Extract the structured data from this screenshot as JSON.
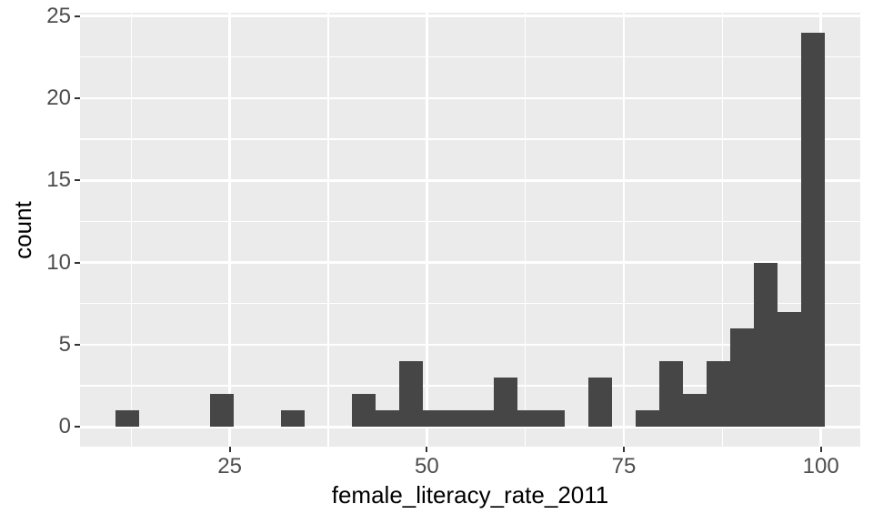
{
  "chart_data": {
    "type": "bar",
    "subtype": "histogram",
    "title": "",
    "xlabel": "female_literacy_rate_2011",
    "ylabel": "count",
    "bin_start": 10.5,
    "bin_width": 3,
    "bin_edges": [
      10.5,
      13.5,
      16.5,
      19.5,
      22.5,
      25.5,
      28.5,
      31.5,
      34.5,
      37.5,
      40.5,
      43.5,
      46.5,
      49.5,
      52.5,
      55.5,
      58.5,
      61.5,
      64.5,
      67.5,
      70.5,
      73.5,
      76.5,
      79.5,
      82.5,
      85.5,
      88.5,
      91.5,
      94.5,
      97.5,
      100.5
    ],
    "counts": [
      1,
      0,
      0,
      0,
      2,
      0,
      0,
      1,
      0,
      0,
      2,
      1,
      4,
      1,
      1,
      1,
      3,
      1,
      1,
      0,
      3,
      0,
      1,
      4,
      2,
      4,
      6,
      10,
      7,
      24
    ],
    "total_count": 80,
    "x_ticks": [
      25,
      50,
      75,
      100
    ],
    "x_tick_labels": [
      "25",
      "50",
      "75",
      "100"
    ],
    "y_ticks": [
      0,
      5,
      10,
      15,
      20,
      25
    ],
    "y_tick_labels": [
      "0",
      "5",
      "10",
      "15",
      "20",
      "25"
    ],
    "x_minor_ticks": [
      12.5,
      37.5,
      62.5,
      87.5
    ],
    "y_minor_ticks": [
      2.5,
      7.5,
      12.5,
      17.5,
      22.5
    ],
    "xlim": [
      6,
      105
    ],
    "ylim": [
      -1.2,
      25.2
    ],
    "grid": true,
    "legend": false,
    "colors": {
      "bar_fill": "#464646",
      "panel_background": "#EBEBEB",
      "gridline": "#FFFFFF",
      "tick_mark": "#333333",
      "tick_label": "#4D4D4D",
      "axis_title": "#000000",
      "figure_background": "#FFFFFF"
    }
  }
}
